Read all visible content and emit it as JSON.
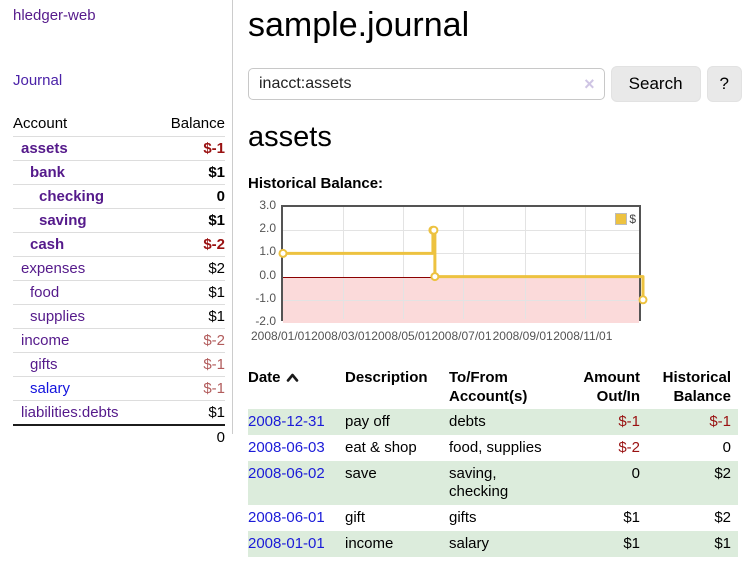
{
  "colors": {
    "link_purple": "#551a8b",
    "link_blue": "#1414dd",
    "negative_red": "#991111",
    "negative_soft_red": "#b25c5c",
    "row_green": "#dcecdc",
    "chart_line_yellow": "#edc240",
    "chart_negative_fill": "#fbdada",
    "zero_line_red": "#8b0000",
    "divider_gray": "#cccccc"
  },
  "sidebar": {
    "app_title": "hledger-web",
    "nav": [
      {
        "label": "Journal"
      }
    ],
    "accounts_table": {
      "headers": {
        "account": "Account",
        "balance": "Balance"
      },
      "rows": [
        {
          "account": "assets",
          "balance": "$-1",
          "level": 1,
          "bold": true,
          "link_color": "purple",
          "balance_style": "neg"
        },
        {
          "account": "bank",
          "balance": "$1",
          "level": 2,
          "bold": true,
          "link_color": "purple",
          "balance_style": "pos"
        },
        {
          "account": "checking",
          "balance": "0",
          "level": 3,
          "bold": true,
          "link_color": "purple",
          "balance_style": "pos"
        },
        {
          "account": "saving",
          "balance": "$1",
          "level": 3,
          "bold": true,
          "link_color": "purple",
          "balance_style": "pos"
        },
        {
          "account": "cash",
          "balance": "$-2",
          "level": 2,
          "bold": true,
          "link_color": "purple",
          "balance_style": "neg"
        },
        {
          "account": "expenses",
          "balance": "$2",
          "level": 1,
          "bold": false,
          "link_color": "purple",
          "balance_style": "pos"
        },
        {
          "account": "food",
          "balance": "$1",
          "level": 2,
          "bold": false,
          "link_color": "purple",
          "balance_style": "pos"
        },
        {
          "account": "supplies",
          "balance": "$1",
          "level": 2,
          "bold": false,
          "link_color": "purple",
          "balance_style": "pos"
        },
        {
          "account": "income",
          "balance": "$-2",
          "level": 1,
          "bold": false,
          "link_color": "purple",
          "balance_style": "negsoft"
        },
        {
          "account": "gifts",
          "balance": "$-1",
          "level": 2,
          "bold": false,
          "link_color": "purple",
          "balance_style": "negsoft"
        },
        {
          "account": "salary",
          "balance": "$-1",
          "level": 2,
          "bold": false,
          "link_color": "blue",
          "balance_style": "negsoft"
        },
        {
          "account": "liabilities:debts",
          "balance": "$1",
          "level": 1,
          "bold": false,
          "link_color": "purple",
          "balance_style": "pos"
        }
      ],
      "total": "0"
    }
  },
  "main": {
    "title": "sample.journal",
    "search": {
      "value": "inacct:assets",
      "clear_icon": "×",
      "search_button_label": "Search",
      "help_button_label": "?"
    },
    "account_heading": "assets",
    "chart_label": "Historical Balance:",
    "register_table": {
      "headers": {
        "date": "Date",
        "description": "Description",
        "accounts_lines": [
          "To/From",
          "Account(s)"
        ],
        "amount_lines": [
          "Amount",
          "Out/In"
        ],
        "balance_lines": [
          "Historical",
          "Balance"
        ]
      },
      "rows": [
        {
          "date": "2008-12-31",
          "description": "pay off",
          "accounts_lines": [
            "debts"
          ],
          "amount": "$-1",
          "balance": "$-1",
          "amount_style": "neg",
          "balance_style": "neg",
          "row_bg": "green"
        },
        {
          "date": "2008-06-03",
          "description": "eat & shop",
          "accounts_lines": [
            "food, supplies"
          ],
          "amount": "$-2",
          "balance": "0",
          "amount_style": "neg",
          "balance_style": "pos",
          "row_bg": "white"
        },
        {
          "date": "2008-06-02",
          "description": "save",
          "accounts_lines": [
            "saving,",
            "checking"
          ],
          "amount": "0",
          "balance": "$2",
          "amount_style": "pos",
          "balance_style": "pos",
          "row_bg": "green"
        },
        {
          "date": "2008-06-01",
          "description": "gift",
          "accounts_lines": [
            "gifts"
          ],
          "amount": "$1",
          "balance": "$2",
          "amount_style": "pos",
          "balance_style": "pos",
          "row_bg": "white"
        },
        {
          "date": "2008-01-01",
          "description": "income",
          "accounts_lines": [
            "salary"
          ],
          "amount": "$1",
          "balance": "$1",
          "amount_style": "pos",
          "balance_style": "pos",
          "row_bg": "green"
        }
      ]
    }
  },
  "chart_data": {
    "type": "line",
    "title": "Historical Balance:",
    "step": true,
    "x_range_days": 365,
    "ylim": [
      -2,
      3
    ],
    "y_ticks": [
      {
        "value": 3,
        "label": "3.0"
      },
      {
        "value": 2,
        "label": "2.0"
      },
      {
        "value": 1,
        "label": "1.0"
      },
      {
        "value": 0,
        "label": "0.0"
      },
      {
        "value": -1,
        "label": "-1.0"
      },
      {
        "value": -2,
        "label": "-2.0"
      }
    ],
    "x_ticks": [
      {
        "day": 0,
        "label": "2008/01/01"
      },
      {
        "day": 61,
        "label": "2008/03/01"
      },
      {
        "day": 122,
        "label": "2008/05/01"
      },
      {
        "day": 183,
        "label": "2008/07/01"
      },
      {
        "day": 245,
        "label": "2008/09/01"
      },
      {
        "day": 306,
        "label": "2008/11/01"
      }
    ],
    "series": [
      {
        "name": "$",
        "color": "#edc240",
        "points": [
          {
            "date": "2008-01-01",
            "day": 0,
            "value": 1
          },
          {
            "date": "2008-06-01",
            "day": 152,
            "value": 2
          },
          {
            "date": "2008-06-02",
            "day": 153,
            "value": 2
          },
          {
            "date": "2008-06-03",
            "day": 154,
            "value": 0
          },
          {
            "date": "2008-12-31",
            "day": 365,
            "value": -1
          }
        ]
      }
    ],
    "legend": {
      "position": "top-right",
      "label": "$"
    },
    "grid": true,
    "negative_region_color": "#fbdada",
    "zero_line_color": "#8b0000"
  }
}
